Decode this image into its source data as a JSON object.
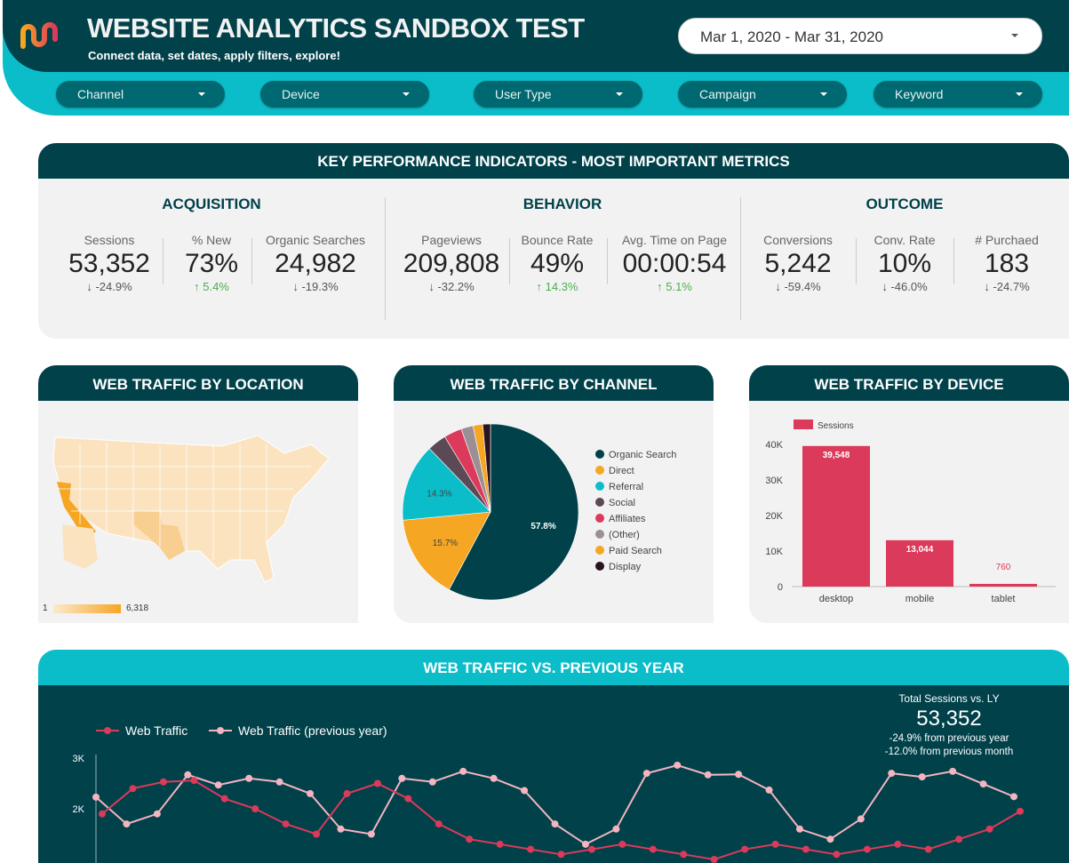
{
  "header": {
    "title": "WEBSITE ANALYTICS SANDBOX TEST",
    "subtitle": "Connect data, set dates, apply filters, explore!",
    "date_range": "Mar 1, 2020 - Mar 31, 2020"
  },
  "filters": [
    "Channel",
    "Device",
    "User Type",
    "Campaign",
    "Keyword"
  ],
  "kpi": {
    "title": "KEY PERFORMANCE INDICATORS - MOST IMPORTANT METRICS",
    "sections": [
      "ACQUISITION",
      "BEHAVIOR",
      "OUTCOME"
    ],
    "metrics": [
      {
        "label": "Sessions",
        "value": "53,352",
        "delta": "-24.9%",
        "dir": "down"
      },
      {
        "label": "% New",
        "value": "73%",
        "delta": "5.4%",
        "dir": "up"
      },
      {
        "label": "Organic Searches",
        "value": "24,982",
        "delta": "-19.3%",
        "dir": "down"
      },
      {
        "label": "Pageviews",
        "value": "209,808",
        "delta": "-32.2%",
        "dir": "down"
      },
      {
        "label": "Bounce Rate",
        "value": "49%",
        "delta": "14.3%",
        "dir": "up"
      },
      {
        "label": "Avg. Time on Page",
        "value": "00:00:54",
        "delta": "5.1%",
        "dir": "up"
      },
      {
        "label": "Conversions",
        "value": "5,242",
        "delta": "-59.4%",
        "dir": "down"
      },
      {
        "label": "Conv. Rate",
        "value": "10%",
        "delta": "-46.0%",
        "dir": "down"
      },
      {
        "label": "# Purchaed",
        "value": "183",
        "delta": "-24.7%",
        "dir": "down"
      }
    ]
  },
  "location": {
    "title": "WEB TRAFFIC BY LOCATION",
    "scale_min": "1",
    "scale_max": "6,318"
  },
  "chart_data": [
    {
      "type": "pie",
      "title": "WEB TRAFFIC BY CHANNEL",
      "categories": [
        "Organic Search",
        "Direct",
        "Referral",
        "Social",
        "Affiliates",
        "(Other)",
        "Paid Search",
        "Display"
      ],
      "values": [
        57.8,
        15.7,
        14.3,
        3.5,
        3.3,
        2.2,
        1.8,
        1.4
      ],
      "labels": [
        "57.8%",
        "15.7%",
        "14.3%"
      ],
      "colors": [
        "#00414a",
        "#f5a623",
        "#0bbcc9",
        "#5b4a55",
        "#dc3a5a",
        "#9a8f95",
        "#f5a623",
        "#2a1220"
      ],
      "legend": "right"
    },
    {
      "type": "bar",
      "title": "WEB TRAFFIC BY DEVICE",
      "categories": [
        "desktop",
        "mobile",
        "tablet"
      ],
      "series": [
        {
          "name": "Sessions",
          "values": [
            39548,
            13044,
            760
          ]
        }
      ],
      "data_labels": [
        "39,548",
        "13,044",
        "760"
      ],
      "yticks": [
        "0",
        "10K",
        "20K",
        "30K",
        "40K"
      ],
      "ylim": [
        0,
        42000
      ],
      "color": "#dc3a5a",
      "legend": "top-left"
    },
    {
      "type": "line",
      "title": "WEB TRAFFIC VS. PREVIOUS YEAR",
      "yticks": [
        "2K",
        "3K"
      ],
      "legend": "top-left",
      "series": [
        {
          "name": "Web Traffic",
          "color": "#dc3a5a",
          "values": [
            1900,
            2400,
            2530,
            2560,
            2200,
            2000,
            1700,
            1500,
            2300,
            2500,
            2200,
            1700,
            1400,
            1300,
            1200,
            1100,
            1200,
            1300,
            1200,
            1100,
            1000,
            1200,
            1300,
            1200,
            1100,
            1200,
            1300,
            1200,
            1400,
            1600,
            1950
          ]
        },
        {
          "name": "Web Traffic (previous year)",
          "color": "#f4b4c0",
          "values": [
            2230,
            1700,
            1900,
            2670,
            2470,
            2600,
            2530,
            2300,
            1600,
            1500,
            2600,
            2530,
            2740,
            2600,
            2360,
            1700,
            1300,
            1600,
            2700,
            2860,
            2670,
            2680,
            2370,
            1600,
            1400,
            1800,
            2700,
            2630,
            2740,
            2490,
            2240
          ]
        }
      ]
    }
  ],
  "summary": {
    "title": "Total Sessions vs. LY",
    "value": "53,352",
    "line1": "-24.9% from previous year",
    "line2": "-12.0% from previous month"
  }
}
